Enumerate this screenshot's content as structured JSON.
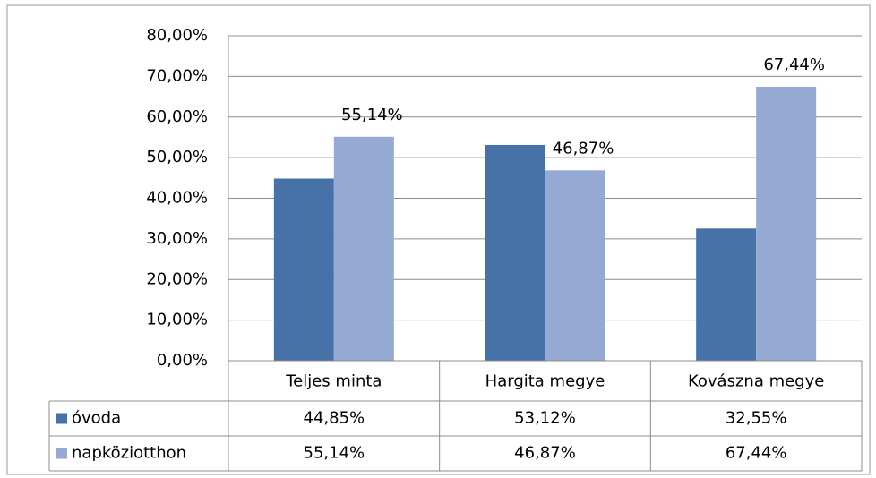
{
  "chart_data": {
    "type": "bar",
    "categories": [
      "Teljes minta",
      "Hargita megye",
      "Kovászna megye"
    ],
    "series": [
      {
        "name": "óvoda",
        "color": "#4672a8",
        "values": [
          44.85,
          53.12,
          32.55
        ],
        "value_labels": [
          "44,85%",
          "53,12%",
          "32,55%"
        ]
      },
      {
        "name": "napköziotthon",
        "color": "#95aad2",
        "values": [
          55.14,
          46.87,
          67.44
        ],
        "value_labels": [
          "55,14%",
          "46,87%",
          "67,44%"
        ]
      }
    ],
    "data_labels_series": [
      1
    ],
    "ylim": [
      0,
      80
    ],
    "yticks": [
      {
        "value": 0,
        "label": "0,00%"
      },
      {
        "value": 10,
        "label": "10,00%"
      },
      {
        "value": 20,
        "label": "20,00%"
      },
      {
        "value": 30,
        "label": "30,00%"
      },
      {
        "value": 40,
        "label": "40,00%"
      },
      {
        "value": 50,
        "label": "50,00%"
      },
      {
        "value": 60,
        "label": "60,00%"
      },
      {
        "value": 70,
        "label": "70,00%"
      },
      {
        "value": 80,
        "label": "80,00%"
      }
    ],
    "grid": true
  }
}
